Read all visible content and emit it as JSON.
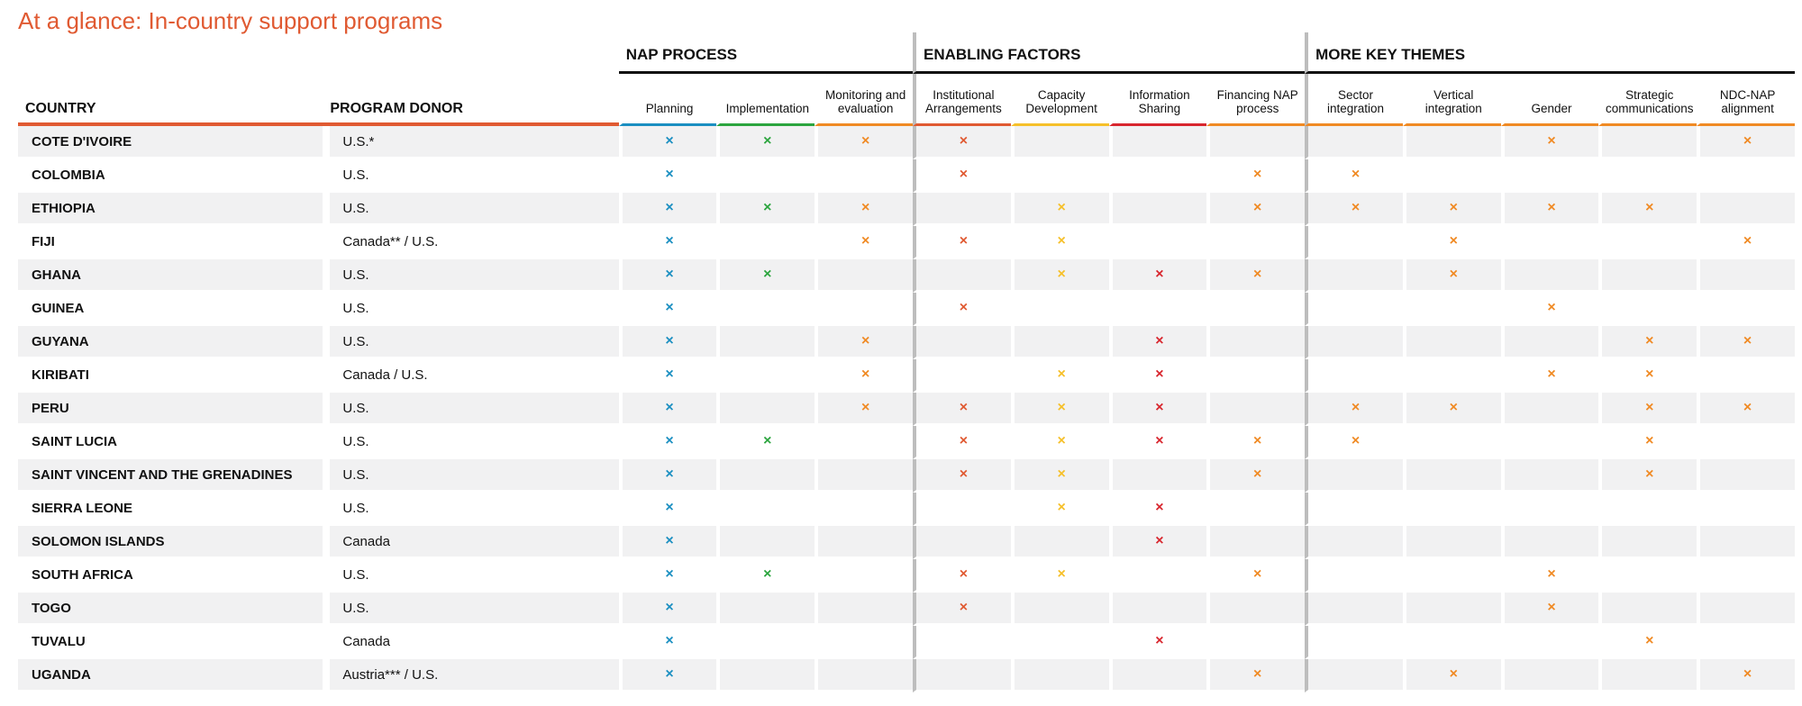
{
  "title": "At a glance: In-country support programs",
  "groups": [
    {
      "label": "NAP PROCESS",
      "span": 3
    },
    {
      "label": "ENABLING FACTORS",
      "span": 4
    },
    {
      "label": "MORE KEY THEMES",
      "span": 5
    }
  ],
  "headers": {
    "country": "COUNTRY",
    "donor": "PROGRAM DONOR"
  },
  "mark_symbol": "×",
  "columns": [
    {
      "label": "Planning",
      "color": "#1b8fc1"
    },
    {
      "label": "Implementation",
      "color": "#2ca53f"
    },
    {
      "label": "Monitoring and evaluation",
      "color": "#f08a24"
    },
    {
      "label": "Institutional Arrangements",
      "color": "#e05a32"
    },
    {
      "label": "Capacity Development",
      "color": "#f6c02a"
    },
    {
      "label": "Information Sharing",
      "color": "#d8262e"
    },
    {
      "label": "Financing NAP process",
      "color": "#f08a24"
    },
    {
      "label": "Sector integration",
      "color": "#f08a24"
    },
    {
      "label": "Vertical integration",
      "color": "#f08a24"
    },
    {
      "label": "Gender",
      "color": "#f08a24"
    },
    {
      "label": "Strategic communications",
      "color": "#f08a24"
    },
    {
      "label": "NDC-NAP alignment",
      "color": "#f08a24"
    }
  ],
  "rows": [
    {
      "country": "COTE D'IVOIRE",
      "donor": "U.S.*",
      "marks": [
        1,
        1,
        1,
        1,
        0,
        0,
        0,
        0,
        0,
        1,
        0,
        1
      ]
    },
    {
      "country": "COLOMBIA",
      "donor": "U.S.",
      "marks": [
        1,
        0,
        0,
        1,
        0,
        0,
        1,
        1,
        0,
        0,
        0,
        0
      ]
    },
    {
      "country": "ETHIOPIA",
      "donor": "U.S.",
      "marks": [
        1,
        1,
        1,
        0,
        1,
        0,
        1,
        1,
        1,
        1,
        1,
        0
      ]
    },
    {
      "country": "FIJI",
      "donor": "Canada** / U.S.",
      "marks": [
        1,
        0,
        1,
        1,
        1,
        0,
        0,
        0,
        1,
        0,
        0,
        1
      ]
    },
    {
      "country": "GHANA",
      "donor": "U.S.",
      "marks": [
        1,
        1,
        0,
        0,
        1,
        1,
        1,
        0,
        1,
        0,
        0,
        0
      ]
    },
    {
      "country": "GUINEA",
      "donor": "U.S.",
      "marks": [
        1,
        0,
        0,
        1,
        0,
        0,
        0,
        0,
        0,
        1,
        0,
        0
      ]
    },
    {
      "country": "GUYANA",
      "donor": "U.S.",
      "marks": [
        1,
        0,
        1,
        0,
        0,
        1,
        0,
        0,
        0,
        0,
        1,
        1
      ]
    },
    {
      "country": "KIRIBATI",
      "donor": "Canada / U.S.",
      "marks": [
        1,
        0,
        1,
        0,
        1,
        1,
        0,
        0,
        0,
        1,
        1,
        0
      ]
    },
    {
      "country": "PERU",
      "donor": "U.S.",
      "marks": [
        1,
        0,
        1,
        1,
        1,
        1,
        0,
        1,
        1,
        0,
        1,
        1
      ]
    },
    {
      "country": "SAINT LUCIA",
      "donor": "U.S.",
      "marks": [
        1,
        1,
        0,
        1,
        1,
        1,
        1,
        1,
        0,
        0,
        1,
        0
      ]
    },
    {
      "country": "SAINT VINCENT AND THE GRENADINES",
      "donor": "U.S.",
      "marks": [
        1,
        0,
        0,
        1,
        1,
        0,
        1,
        0,
        0,
        0,
        1,
        0
      ]
    },
    {
      "country": "SIERRA LEONE",
      "donor": "U.S.",
      "marks": [
        1,
        0,
        0,
        0,
        1,
        1,
        0,
        0,
        0,
        0,
        0,
        0
      ]
    },
    {
      "country": "SOLOMON ISLANDS",
      "donor": "Canada",
      "marks": [
        1,
        0,
        0,
        0,
        0,
        1,
        0,
        0,
        0,
        0,
        0,
        0
      ]
    },
    {
      "country": "SOUTH AFRICA",
      "donor": "U.S.",
      "marks": [
        1,
        1,
        0,
        1,
        1,
        0,
        1,
        0,
        0,
        1,
        0,
        0
      ]
    },
    {
      "country": "TOGO",
      "donor": "U.S.",
      "marks": [
        1,
        0,
        0,
        1,
        0,
        0,
        0,
        0,
        0,
        1,
        0,
        0
      ]
    },
    {
      "country": "TUVALU",
      "donor": "Canada",
      "marks": [
        1,
        0,
        0,
        0,
        0,
        1,
        0,
        0,
        0,
        0,
        1,
        0
      ]
    },
    {
      "country": "UGANDA",
      "donor": "Austria*** / U.S.",
      "marks": [
        1,
        0,
        0,
        0,
        0,
        0,
        1,
        0,
        1,
        0,
        0,
        1
      ]
    }
  ]
}
